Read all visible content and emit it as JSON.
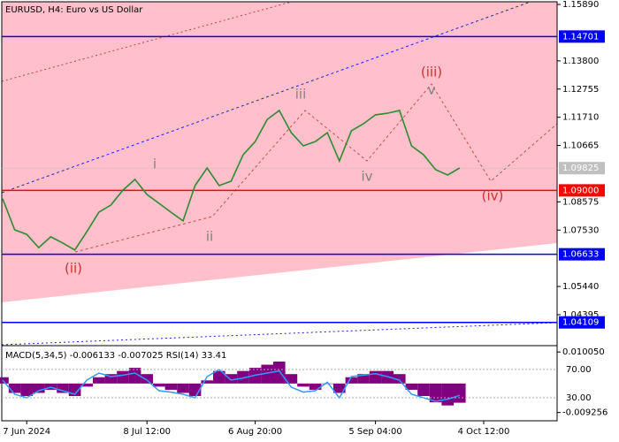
{
  "chart_data": {
    "type": "line",
    "title": "EURUSD, H4:  Euro vs US Dollar",
    "categories": [
      null,
      null,
      "7 Jun 2024",
      null,
      null,
      null,
      null,
      null,
      null,
      null,
      null,
      null,
      "8 Jul 12:00",
      null,
      null,
      null,
      null,
      null,
      null,
      null,
      null,
      "6 Aug 20:00",
      null,
      null,
      null,
      null,
      null,
      null,
      null,
      null,
      null,
      "5 Sep 04:00",
      null,
      null,
      null,
      null,
      null,
      null,
      null,
      null,
      "4 Oct 12:00"
    ],
    "series": [
      {
        "name": "EURUSD",
        "color": "#2e8b2e",
        "values": [
          1.0869,
          1.0754,
          1.0737,
          1.0688,
          1.0728,
          1.0705,
          1.0679,
          1.0747,
          1.0819,
          1.0846,
          1.0901,
          1.0941,
          1.0885,
          1.0852,
          1.0819,
          1.0787,
          1.0918,
          1.0983,
          1.0918,
          1.0934,
          1.1032,
          1.1081,
          1.1163,
          1.1196,
          1.1114,
          1.1065,
          1.1081,
          1.1114,
          1.1009,
          1.1121,
          1.1147,
          1.118,
          1.1186,
          1.1196,
          1.1065,
          1.1032,
          1.0977,
          1.0957,
          1.0983,
          null,
          null
        ]
      }
    ],
    "ylim": [
      1.0328,
      1.1599
    ],
    "yticks": [
      {
        "value": 1.1589,
        "label": "1.15890"
      },
      {
        "value": 1.138,
        "label": "1.13800"
      },
      {
        "value": 1.12755,
        "label": "1.12755"
      },
      {
        "value": 1.1171,
        "label": "1.11710"
      },
      {
        "value": 1.10665,
        "label": "1.10665"
      },
      {
        "value": 1.08575,
        "label": "1.08575"
      },
      {
        "value": 1.0753,
        "label": "1.07530"
      },
      {
        "value": 1.0544,
        "label": "1.05440"
      },
      {
        "value": 1.04395,
        "label": "1.04395"
      }
    ],
    "levels": [
      {
        "value": 1.14701,
        "label": "1.14701",
        "color": "#0000ff"
      },
      {
        "value": 1.09,
        "label": "1.09000",
        "color": "#ff0000"
      },
      {
        "value": 1.06633,
        "label": "1.06633",
        "color": "#0000ff"
      },
      {
        "value": 1.04109,
        "label": "1.04109",
        "color": "#0000ff"
      }
    ],
    "current_price": {
      "value": 1.09825,
      "label": "1.09825",
      "color": "#c0c0c0"
    },
    "annotations": [
      {
        "text": "i",
        "color": "#808080"
      },
      {
        "text": "ii",
        "color": "#808080"
      },
      {
        "text": "iii",
        "color": "#808080"
      },
      {
        "text": "iv",
        "color": "#808080"
      },
      {
        "text": "v",
        "color": "#808080"
      },
      {
        "text": "(ii)",
        "color": "#d03030"
      },
      {
        "text": "(iii)",
        "color": "#d03030"
      },
      {
        "text": "(iv)",
        "color": "#d03030"
      }
    ],
    "indicator": {
      "label": "MACD(5,34,5) -0.006133 -0.007025 RSI(14) 33.41",
      "macd": {
        "color": "#800080",
        "values": [
          0.002,
          -0.003,
          -0.004,
          -0.003,
          -0.002,
          -0.003,
          -0.004,
          -0.001,
          0.002,
          0.003,
          0.004,
          0.005,
          0.003,
          -0.001,
          -0.002,
          -0.003,
          -0.004,
          0.001,
          0.004,
          0.003,
          0.004,
          0.005,
          0.006,
          0.007,
          0.003,
          -0.001,
          -0.002,
          0.0,
          -0.003,
          0.002,
          0.003,
          0.004,
          0.004,
          0.003,
          -0.002,
          -0.004,
          -0.006,
          -0.007,
          -0.006133,
          null,
          null
        ]
      },
      "rsi": {
        "color": "#3399ff",
        "values": [
          55,
          35,
          30,
          40,
          45,
          40,
          35,
          55,
          65,
          60,
          62,
          65,
          55,
          40,
          38,
          35,
          30,
          60,
          70,
          55,
          58,
          62,
          65,
          68,
          45,
          38,
          40,
          52,
          30,
          60,
          62,
          64,
          60,
          55,
          35,
          30,
          25,
          28,
          33.41,
          null,
          null
        ]
      },
      "ylim": [
        -0.0102,
        0.0118
      ],
      "yticks": [
        {
          "value": 0.01005,
          "label": "0.010050"
        },
        {
          "value": -0.009256,
          "label": "-0.009256"
        }
      ],
      "y2lim": [
        5,
        102.5
      ],
      "y2ticks": [
        {
          "value": 70,
          "label": "70.00"
        },
        {
          "value": 30,
          "label": "30.00"
        }
      ]
    }
  }
}
